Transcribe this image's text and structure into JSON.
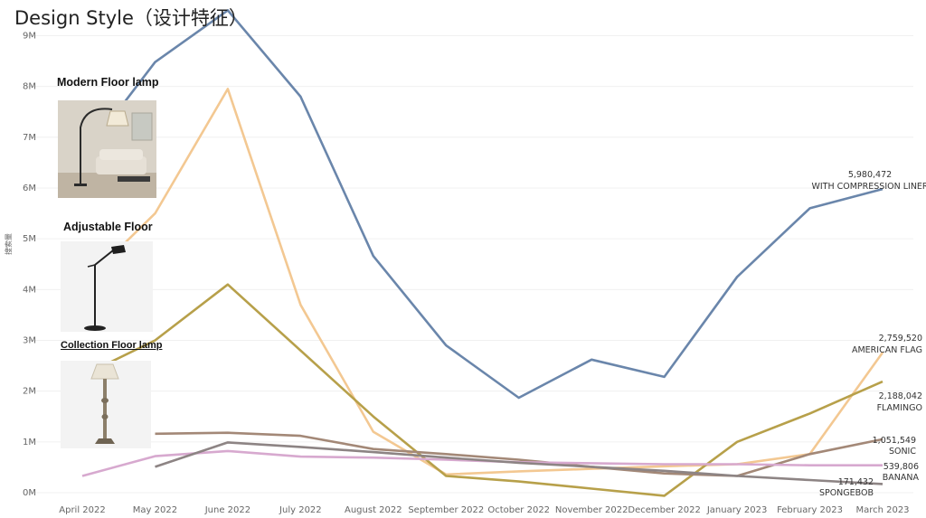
{
  "title": "Design Style（设计特征）",
  "products": [
    {
      "name": "Modern Floor lamp",
      "image": "modern-floor-lamp-photo"
    },
    {
      "name": "Adjustable Floor",
      "image": "adjustable-floor-lamp-photo"
    },
    {
      "name": "Collection Floor lamp",
      "image": "collection-floor-lamp-photo"
    }
  ],
  "chart_data": {
    "type": "line",
    "ylabel": "搜索量",
    "xlabel": "",
    "categories": [
      "April 2022",
      "May 2022",
      "June 2022",
      "July 2022",
      "August 2022",
      "September 2022",
      "October 2022",
      "November 2022",
      "December 2022",
      "January 2023",
      "February 2023",
      "March 2023"
    ],
    "y_ticks": [
      "0M",
      "1M",
      "2M",
      "3M",
      "4M",
      "5M",
      "6M",
      "7M",
      "8M",
      "9M"
    ],
    "ylim": [
      0,
      9400000
    ],
    "grid": true,
    "series": [
      {
        "name": "WITH COMPRESSION LINER",
        "end_value": "5,980,472",
        "color": "#6a86ab",
        "values": [
          6600000,
          8480000,
          9500000,
          7800000,
          4660000,
          2900000,
          1870000,
          2620000,
          2280000,
          4250000,
          5600000,
          5980472
        ]
      },
      {
        "name": "AMERICAN FLAG",
        "end_value": "2,759,520",
        "color": "#f3c892",
        "values": [
          4100000,
          5500000,
          7950000,
          3700000,
          1200000,
          360000,
          420000,
          470000,
          520000,
          560000,
          760000,
          2759520
        ]
      },
      {
        "name": "FLAMINGO",
        "end_value": "2,188,042",
        "color": "#b7a04a",
        "values": [
          2300000,
          3000000,
          4100000,
          null,
          1500000,
          330000,
          220000,
          80000,
          -60000,
          1000000,
          1560000,
          2188042
        ]
      },
      {
        "name": "SONIC",
        "end_value": "1,051,549",
        "color": "#a38877",
        "values": [
          null,
          1160000,
          1180000,
          1120000,
          860000,
          760000,
          650000,
          510000,
          380000,
          330000,
          760000,
          1051549
        ]
      },
      {
        "name": "BANANA",
        "end_value": "539,806",
        "color": "#d7a9cf",
        "values": [
          330000,
          720000,
          820000,
          710000,
          690000,
          650000,
          600000,
          580000,
          560000,
          560000,
          540000,
          539806
        ]
      },
      {
        "name": "SPONGEBOB",
        "end_value": "171,432",
        "color": "#8d8484",
        "values": [
          null,
          510000,
          990000,
          900000,
          800000,
          690000,
          590000,
          510000,
          430000,
          330000,
          250000,
          171432
        ]
      }
    ]
  }
}
